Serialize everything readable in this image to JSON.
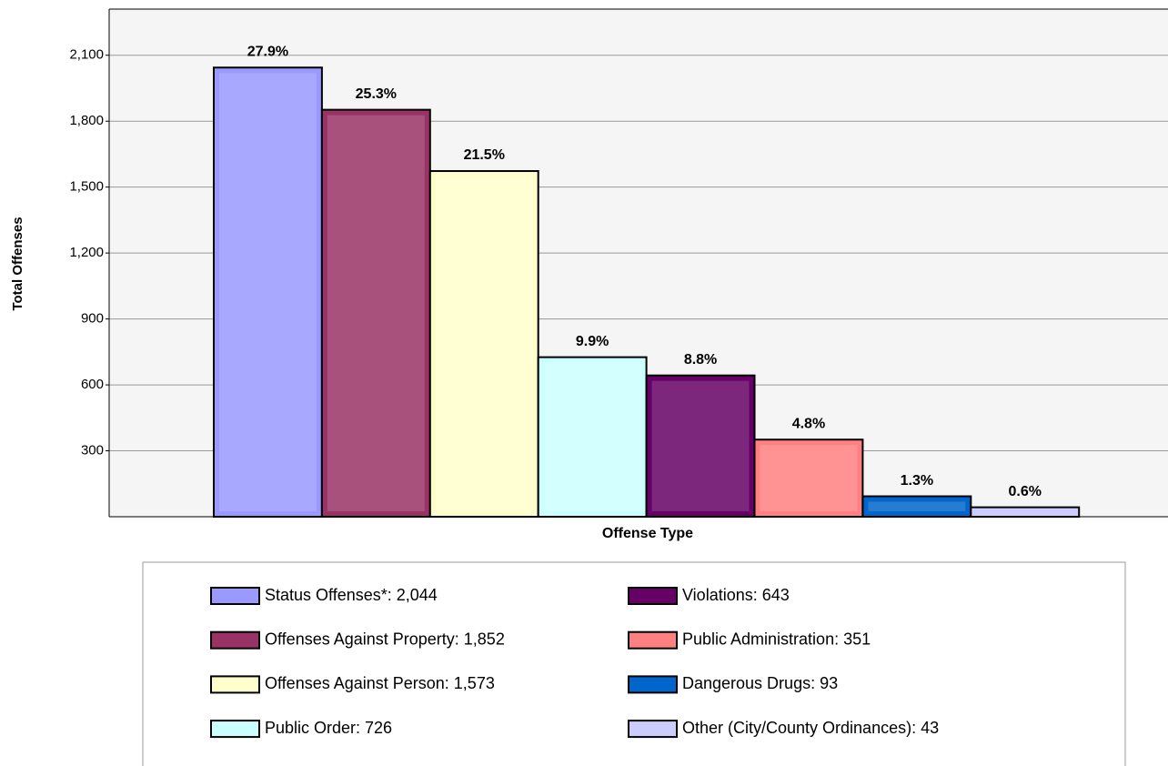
{
  "chart_data": {
    "type": "bar",
    "y_label": "Total Offenses",
    "x_label": "Offense Type",
    "categories": [
      "Status Offenses*: 2,044",
      "Offenses Against Property: 1,852",
      "Offenses Against Person: 1,573",
      "Public Order: 726",
      "Violations: 643",
      "Public Administration: 351",
      "Dangerous Drugs: 93",
      "Other (City/County Ordinances): 43"
    ],
    "values": [
      2044,
      1852,
      1573,
      726,
      643,
      351,
      93,
      43
    ],
    "annotations": [
      "27.9%",
      "25.3%",
      "21.5%",
      "9.9%",
      "8.8%",
      "4.8%",
      "1.3%",
      "0.6%"
    ],
    "colors": [
      "#9999ff",
      "#993366",
      "#ffffcc",
      "#ccffff",
      "#660066",
      "#ff8080",
      "#0066cc",
      "#ccccff"
    ],
    "ylim": [
      0,
      2310
    ],
    "yticks": [
      300,
      600,
      900,
      {
        "value": 1200,
        "label": "1,200"
      },
      {
        "value": 1500,
        "label": "1,500"
      },
      {
        "value": 1800,
        "label": "1,800"
      },
      {
        "value": 2100,
        "label": "2,100"
      }
    ],
    "grid": true
  }
}
